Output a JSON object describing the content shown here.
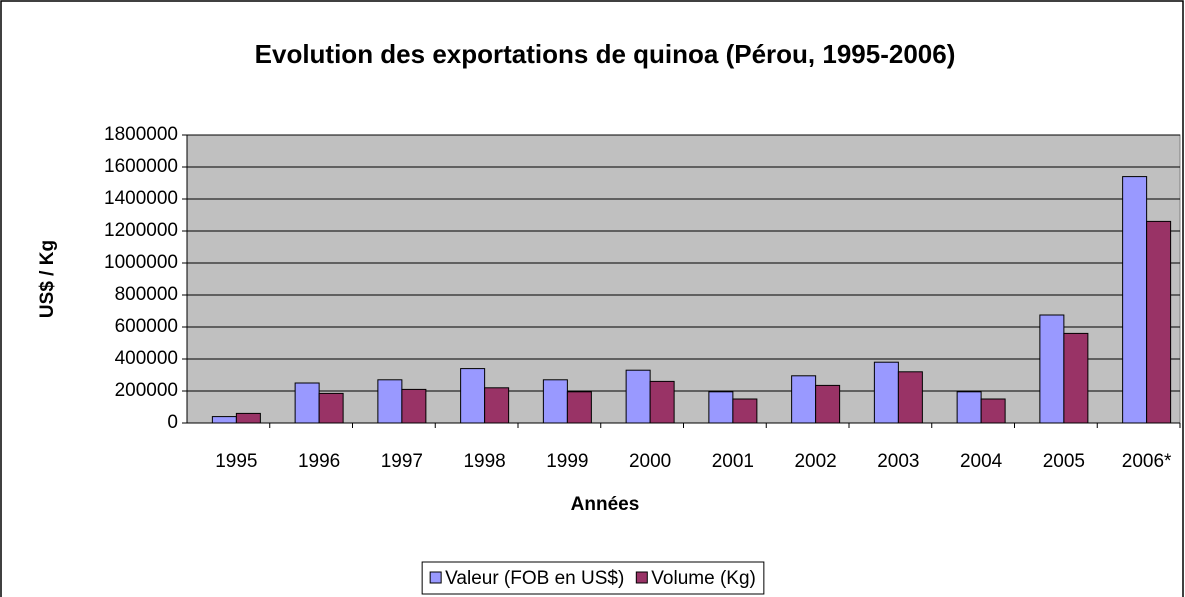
{
  "chart_data": {
    "type": "bar",
    "title": "Evolution des exportations de quinoa (Pérou, 1995-2006)",
    "x_label": "Années",
    "y_label": "US$ / Kg",
    "categories": [
      "1995",
      "1996",
      "1997",
      "1998",
      "1999",
      "2000",
      "2001",
      "2002",
      "2003",
      "2004",
      "2005",
      "2006*"
    ],
    "series": [
      {
        "name": "Valeur (FOB en US$)",
        "color": "#9999ff",
        "values": [
          40000,
          250000,
          270000,
          340000,
          270000,
          330000,
          195000,
          295000,
          380000,
          195000,
          675000,
          1540000
        ]
      },
      {
        "name": "Volume (Kg)",
        "color": "#993366",
        "values": [
          60000,
          185000,
          210000,
          220000,
          195000,
          260000,
          150000,
          235000,
          320000,
          150000,
          560000,
          1260000
        ]
      }
    ],
    "ylim": [
      0,
      1800000
    ],
    "yticks": [
      0,
      200000,
      400000,
      600000,
      800000,
      1000000,
      1200000,
      1400000,
      1600000,
      1800000
    ],
    "grid": true,
    "plot_background": "#c0c0c0",
    "legend": "bottom"
  }
}
